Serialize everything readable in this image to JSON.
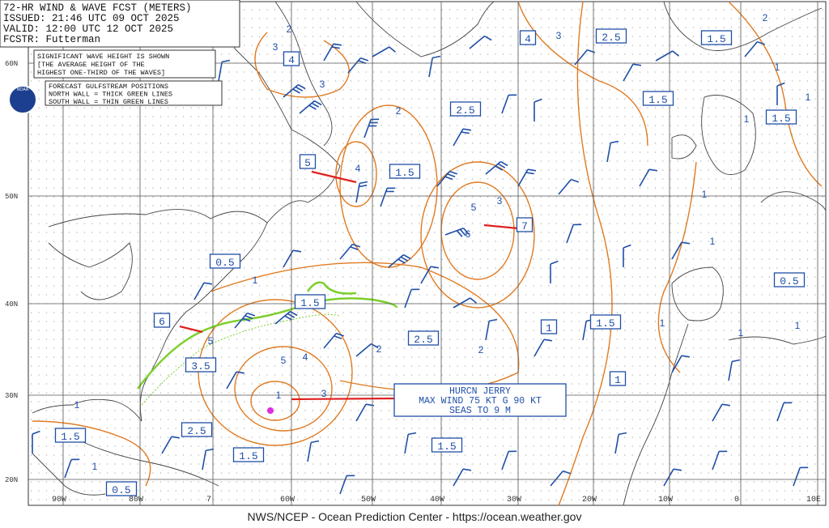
{
  "header": {
    "lines": [
      "72-HR WIND & WAVE FCST (METERS)",
      "ISSUED: 21:46 UTC 09 OCT 2025",
      "VALID:  12:00 UTC 12 OCT 2025",
      "FCSTR:  Futterman"
    ]
  },
  "notes": {
    "wave_height": [
      "SIGNIFICANT WAVE HEIGHT IS SHOWN",
      "[THE AVERAGE HEIGHT OF THE",
      "HIGHEST ONE-THIRD OF THE WAVES]"
    ],
    "gulfstream": [
      "FORECAST GULFSTREAM POSITIONS",
      "NORTH WALL = THICK GREEN LINES",
      "SOUTH WALL = THIN GREEN LINES"
    ]
  },
  "logo": "NOAA",
  "latitudes": [
    "60N",
    "50N",
    "40N",
    "30N",
    "20N"
  ],
  "longitudes": [
    "90W",
    "80W",
    "7",
    "60W",
    "50W",
    "40W",
    "30W",
    "20W",
    "10W",
    "0",
    "10E"
  ],
  "wave_height_boxes": [
    "4",
    "4",
    "2.5",
    "1.5",
    "1.5",
    "1.5",
    "2.5",
    "5",
    "1.5",
    "7",
    "0.5",
    "1.5",
    "6",
    "2.5",
    "1",
    "1.5",
    "0.5",
    "3.5",
    "1",
    "2.5",
    "1.5",
    "1.5",
    "1.5",
    "0.5"
  ],
  "contour_labels": [
    "2",
    "3",
    "3",
    "3",
    "2",
    "4",
    "5",
    "6",
    "3",
    "2",
    "1",
    "1",
    "1",
    "1",
    "1",
    "1",
    "5",
    "5",
    "4",
    "3",
    "1",
    "2",
    "2",
    "1",
    "1",
    "1",
    "1",
    "1"
  ],
  "hurricane": {
    "lines": [
      "HURCN JERRY",
      "MAX WIND 75 KT G 90 KT",
      "SEAS TO 9 M"
    ]
  },
  "footer": "NWS/NCEP - Ocean Prediction Center - https://ocean.weather.gov"
}
